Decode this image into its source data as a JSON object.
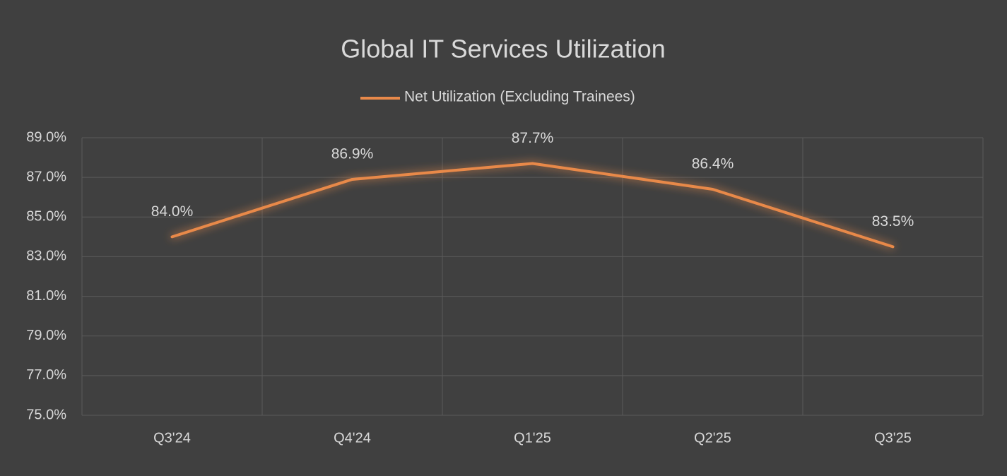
{
  "chart_data": {
    "type": "line",
    "title": "Global IT Services Utilization",
    "categories": [
      "Q3'24",
      "Q4'24",
      "Q1'25",
      "Q2'25",
      "Q3'25"
    ],
    "series": [
      {
        "name": "Net Utilization (Excluding Trainees)",
        "color": "#e8894a",
        "values": [
          84.0,
          86.9,
          87.7,
          86.4,
          83.5
        ],
        "value_labels": [
          "84.0%",
          "86.9%",
          "87.7%",
          "86.4%",
          "83.5%"
        ]
      }
    ],
    "ylim": [
      75,
      89
    ],
    "yticks": [
      {
        "value": 75,
        "label": "75.0%"
      },
      {
        "value": 77,
        "label": "77.0%"
      },
      {
        "value": 79,
        "label": "79.0%"
      },
      {
        "value": 81,
        "label": "81.0%"
      },
      {
        "value": 83,
        "label": "83.0%"
      },
      {
        "value": 85,
        "label": "85.0%"
      },
      {
        "value": 87,
        "label": "87.0%"
      },
      {
        "value": 89,
        "label": "89.0%"
      }
    ],
    "grid": true,
    "legend": "top"
  }
}
